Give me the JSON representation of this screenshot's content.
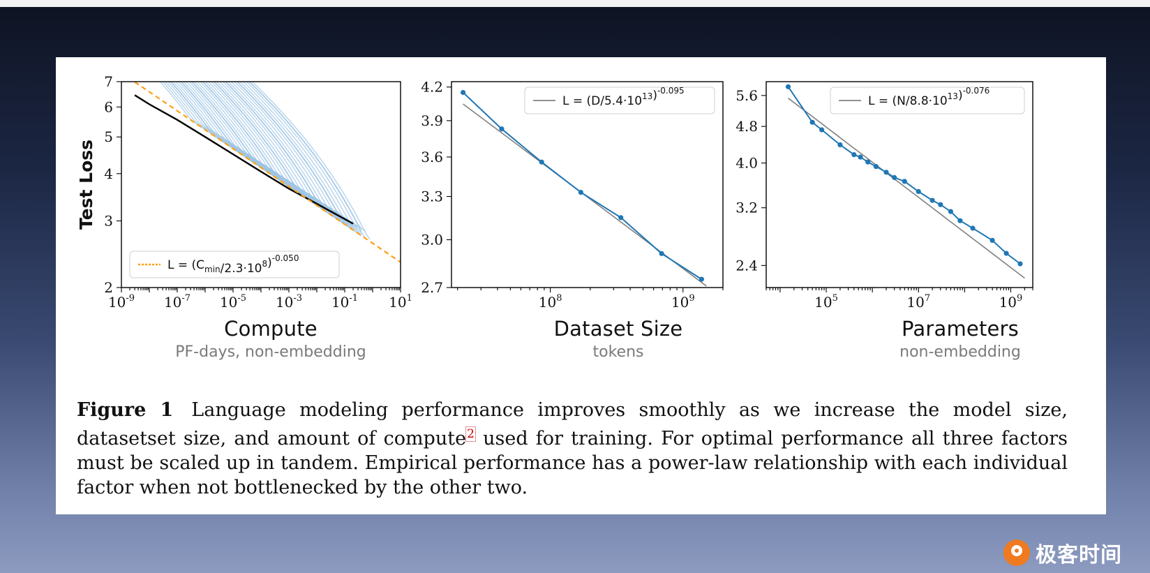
{
  "figure": {
    "caption_lead": "Figure 1",
    "caption_p1": "Language modeling performance improves smoothly as we increase the model size, datasetset size, and amount of compute",
    "caption_fn": "2",
    "caption_p2": " used for training. For optimal performance all three factors must be scaled up in tandem. Empirical performance has a power-law relationship with each individual factor when not bottlenecked by the other two."
  },
  "brand": {
    "name": "极客时间"
  },
  "colors": {
    "curve": "#1f77b4",
    "curve_light": "#9ec4e4",
    "frontier": "#000000",
    "fit_orange": "#ff9f10",
    "fit_gray": "#808080",
    "axis": "#000000"
  },
  "chart_data": [
    {
      "type": "line",
      "xlabel": "Compute",
      "xsublabel": "PF-days, non-embedding",
      "ylabel": "Test Loss",
      "xscale": "log",
      "yscale": "log",
      "xlim": [
        1e-09,
        10
      ],
      "ylim": [
        2,
        7
      ],
      "xticks": [
        "10^{-9}",
        "10^{-7}",
        "10^{-5}",
        "10^{-3}",
        "10^{-1}",
        "10^{1}"
      ],
      "yticks": [
        "2",
        "3",
        "4",
        "5",
        "6",
        "7"
      ],
      "legend": {
        "position": "lower-left",
        "entries": [
          {
            "kind": "fit",
            "text": "L = (C_min/2.3·10^8)^{-0.050}"
          }
        ]
      },
      "fit": {
        "C": 230000000.0,
        "alpha": 0.05,
        "range": [
          3e-09,
          10
        ]
      },
      "frontier": [
        [
          3e-09,
          6.45
        ],
        [
          1e-08,
          6.1
        ],
        [
          1e-07,
          5.55
        ],
        [
          1e-06,
          5.0
        ],
        [
          1e-05,
          4.5
        ],
        [
          0.0001,
          4.05
        ],
        [
          0.001,
          3.65
        ],
        [
          0.01,
          3.33
        ],
        [
          0.05,
          3.12
        ],
        [
          0.2,
          2.95
        ]
      ],
      "note": "many light-blue individual training curves lie above the black frontier"
    },
    {
      "type": "line",
      "xlabel": "Dataset Size",
      "xsublabel": "tokens",
      "xscale": "log",
      "yscale": "log",
      "xlim": [
        18000000.0,
        2000000000.0
      ],
      "ylim": [
        2.7,
        4.25
      ],
      "xticks": [
        "10^{8}",
        "10^{9}"
      ],
      "yticks": [
        "2.7",
        "3.0",
        "3.3",
        "3.6",
        "3.9",
        "4.2"
      ],
      "legend": {
        "position": "top-right",
        "entries": [
          {
            "kind": "fit",
            "text": "L = (D/5.4·10^{13})^{-0.095}"
          }
        ]
      },
      "fit": {
        "C": 54000000000000.0,
        "alpha": 0.095,
        "range": [
          22000000.0,
          1500000000.0
        ]
      },
      "points": [
        [
          22000000.0,
          4.15
        ],
        [
          43000000.0,
          3.83
        ],
        [
          86000000.0,
          3.56
        ],
        [
          170000000.0,
          3.33
        ],
        [
          340000000.0,
          3.15
        ],
        [
          690000000.0,
          2.91
        ],
        [
          1380000000.0,
          2.75
        ]
      ]
    },
    {
      "type": "line",
      "xlabel": "Parameters",
      "xsublabel": "non-embedding",
      "xscale": "log",
      "yscale": "log",
      "xlim": [
        5000.0,
        3000000000.0
      ],
      "ylim": [
        2.15,
        6.0
      ],
      "xticks": [
        "10^{5}",
        "10^{7}",
        "10^{9}"
      ],
      "yticks": [
        "2.4",
        "3.2",
        "4.0",
        "4.8",
        "5.6"
      ],
      "legend": {
        "position": "top-right",
        "entries": [
          {
            "kind": "fit",
            "text": "L = (N/8.8·10^{13})^{-0.076}"
          }
        ]
      },
      "fit": {
        "C": 88000000000000.0,
        "alpha": 0.076,
        "range": [
          15000.0,
          2000000000.0
        ]
      },
      "points": [
        [
          15000.0,
          5.85
        ],
        [
          50000.0,
          4.9
        ],
        [
          80000.0,
          4.72
        ],
        [
          200000.0,
          4.38
        ],
        [
          400000.0,
          4.17
        ],
        [
          550000.0,
          4.12
        ],
        [
          800000.0,
          4.02
        ],
        [
          1200000.0,
          3.93
        ],
        [
          2000000.0,
          3.82
        ],
        [
          3000000.0,
          3.72
        ],
        [
          5000000.0,
          3.65
        ],
        [
          10000000.0,
          3.47
        ],
        [
          20000000.0,
          3.32
        ],
        [
          30000000.0,
          3.25
        ],
        [
          50000000.0,
          3.14
        ],
        [
          80000000.0,
          3.0
        ],
        [
          150000000.0,
          2.89
        ],
        [
          400000000.0,
          2.72
        ],
        [
          800000000.0,
          2.55
        ],
        [
          1600000000.0,
          2.42
        ]
      ]
    }
  ]
}
